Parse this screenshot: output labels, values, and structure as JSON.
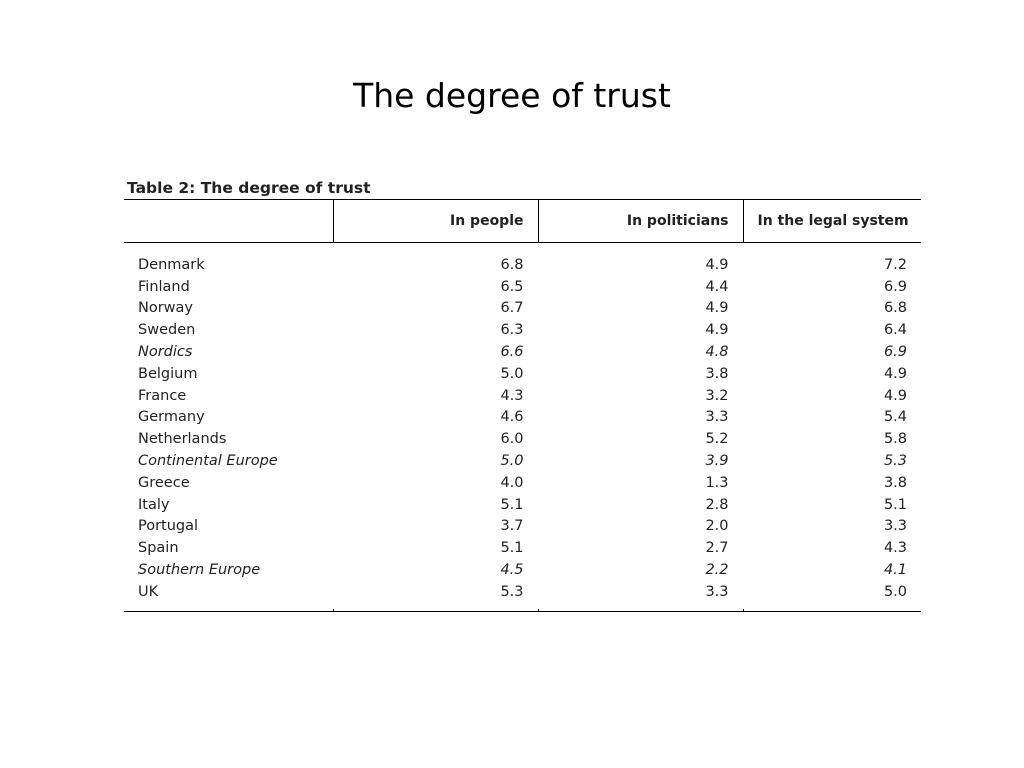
{
  "slide": {
    "title": "The degree of trust"
  },
  "table": {
    "caption": "Table 2: The degree of trust",
    "headers": [
      "",
      "In people",
      "In politicians",
      "In the legal system"
    ],
    "rows": [
      {
        "name": "Denmark",
        "people": "6.8",
        "politicians": "4.9",
        "legal": "7.2",
        "italic": false
      },
      {
        "name": "Finland",
        "people": "6.5",
        "politicians": "4.4",
        "legal": "6.9",
        "italic": false
      },
      {
        "name": "Norway",
        "people": "6.7",
        "politicians": "4.9",
        "legal": "6.8",
        "italic": false
      },
      {
        "name": "Sweden",
        "people": "6.3",
        "politicians": "4.9",
        "legal": "6.4",
        "italic": false
      },
      {
        "name": "Nordics",
        "people": "6.6",
        "politicians": "4.8",
        "legal": "6.9",
        "italic": true
      },
      {
        "name": "Belgium",
        "people": "5.0",
        "politicians": "3.8",
        "legal": "4.9",
        "italic": false
      },
      {
        "name": "France",
        "people": "4.3",
        "politicians": "3.2",
        "legal": "4.9",
        "italic": false
      },
      {
        "name": "Germany",
        "people": "4.6",
        "politicians": "3.3",
        "legal": "5.4",
        "italic": false
      },
      {
        "name": "Netherlands",
        "people": "6.0",
        "politicians": "5.2",
        "legal": "5.8",
        "italic": false
      },
      {
        "name": "Continental Europe",
        "people": "5.0",
        "politicians": "3.9",
        "legal": "5.3",
        "italic": true
      },
      {
        "name": "Greece",
        "people": "4.0",
        "politicians": "1.3",
        "legal": "3.8",
        "italic": false
      },
      {
        "name": "Italy",
        "people": "5.1",
        "politicians": "2.8",
        "legal": "5.1",
        "italic": false
      },
      {
        "name": "Portugal",
        "people": "3.7",
        "politicians": "2.0",
        "legal": "3.3",
        "italic": false
      },
      {
        "name": "Spain",
        "people": "5.1",
        "politicians": "2.7",
        "legal": "4.3",
        "italic": false
      },
      {
        "name": "Southern Europe",
        "people": "4.5",
        "politicians": "2.2",
        "legal": "4.1",
        "italic": true
      },
      {
        "name": "UK",
        "people": "5.3",
        "politicians": "3.3",
        "legal": "5.0",
        "italic": false
      }
    ]
  }
}
